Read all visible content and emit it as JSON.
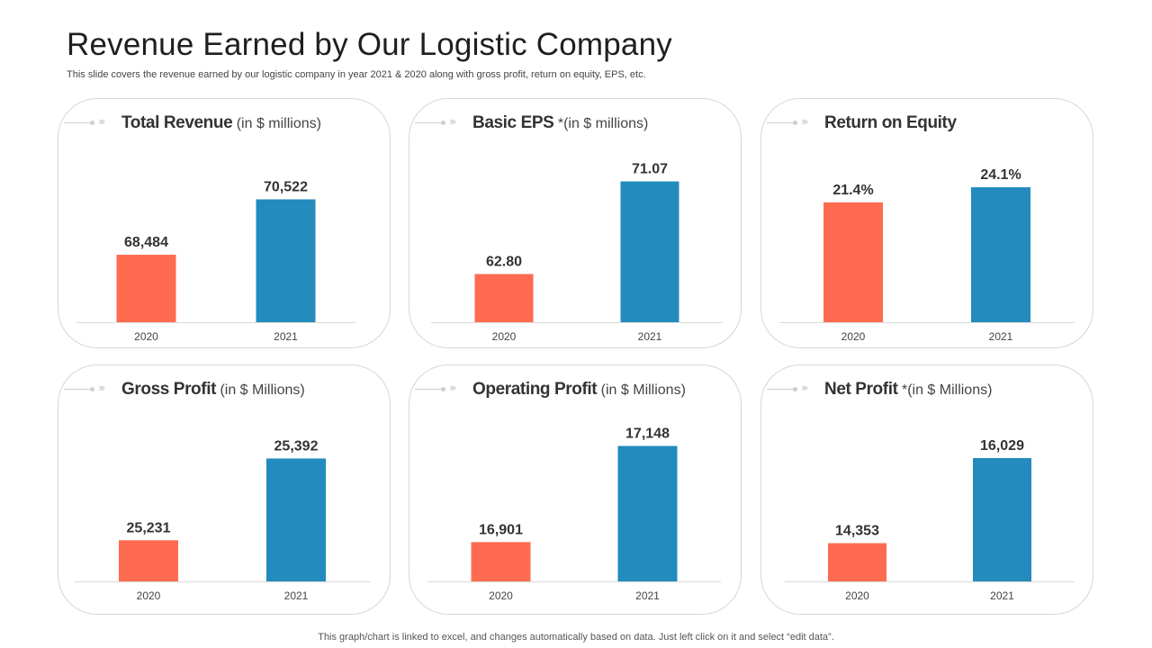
{
  "slide": {
    "title": "Revenue Earned by Our Logistic Company",
    "subtitle": "This slide covers the revenue earned by our logistic company in year 2021 & 2020 along with gross profit, return on equity, EPS, etc.",
    "footer": "This graph/chart is linked to excel,  and changes automatically based on data. Just left click on it and select “edit data”."
  },
  "colors": {
    "c2020": "#ff6b50",
    "c2021": "#238bbd",
    "accent_red": "#ff6b50",
    "accent_blue": "#238bbd"
  },
  "chart_data": [
    {
      "type": "bar",
      "title": "Total Revenue",
      "title_suffix": " (in $ millions)",
      "header_icon": "red-tab-icon",
      "categories": [
        "2020",
        "2021"
      ],
      "values": [
        68484,
        70522
      ],
      "labels": [
        "68,484",
        "70,522"
      ],
      "ylim": [
        66000,
        71500
      ]
    },
    {
      "type": "bar",
      "title": "Basic EPS",
      "title_suffix": " *(in $ millions)",
      "header_icon": "blue-tab-icon",
      "categories": [
        "2020",
        "2021"
      ],
      "values": [
        62.8,
        71.07
      ],
      "labels": [
        "62.80",
        "71.07"
      ],
      "ylim": [
        58.5,
        72
      ]
    },
    {
      "type": "bar",
      "title": "Return on Equity",
      "title_suffix": "",
      "header_icon": "red-tab-icon",
      "categories": [
        "2020",
        "2021"
      ],
      "values": [
        21.4,
        24.1
      ],
      "labels": [
        "21.4%",
        "24.1%"
      ],
      "ylim": [
        0,
        27
      ]
    },
    {
      "type": "bar",
      "title": "Gross Profit",
      "title_suffix": " (in $ Millions)",
      "header_icon": "blue-tab-icon",
      "categories": [
        "2020",
        "2021"
      ],
      "values": [
        25231,
        25392
      ],
      "labels": [
        "25,231",
        "25,392"
      ],
      "ylim": [
        25150,
        25430
      ]
    },
    {
      "type": "bar",
      "title": "Operating Profit",
      "title_suffix": " (in $ Millions)",
      "header_icon": "red-tab-icon",
      "categories": [
        "2020",
        "2021"
      ],
      "values": [
        16901,
        17148
      ],
      "labels": [
        "16,901",
        "17,148"
      ],
      "ylim": [
        16800,
        17170
      ]
    },
    {
      "type": "bar",
      "title": "Net Profit",
      "title_suffix": " *(in $ Millions)",
      "header_icon": "blue-tab-icon",
      "categories": [
        "2020",
        "2021"
      ],
      "values": [
        14353,
        16029
      ],
      "labels": [
        "14,353",
        "16,029"
      ],
      "ylim": [
        13600,
        16400
      ]
    }
  ]
}
